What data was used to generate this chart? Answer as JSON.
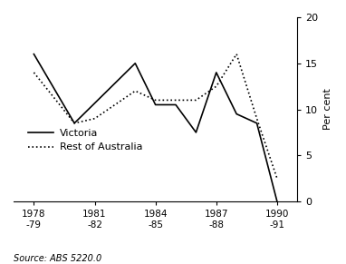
{
  "title": "",
  "ylabel": "Per cent",
  "ylim": [
    0,
    20
  ],
  "yticks": [
    0,
    5,
    10,
    15,
    20
  ],
  "x_labels": [
    "1978\n-79",
    "1981\n-82",
    "1984\n-85",
    "1987\n-88",
    "1990\n-91"
  ],
  "x_positions": [
    1978,
    1981,
    1984,
    1987,
    1990
  ],
  "victoria_x": [
    1978,
    1980,
    1983,
    1984,
    1985,
    1986,
    1987,
    1988,
    1989,
    1990
  ],
  "victoria_y": [
    16.0,
    8.5,
    15.0,
    10.5,
    10.5,
    7.5,
    14.0,
    9.5,
    8.5,
    0.0
  ],
  "roa_x": [
    1978,
    1980,
    1981,
    1983,
    1984,
    1985,
    1986,
    1987,
    1988,
    1989,
    1990
  ],
  "roa_y": [
    14.0,
    8.5,
    9.0,
    12.0,
    11.0,
    11.0,
    11.0,
    12.5,
    16.0,
    9.0,
    2.5
  ],
  "victoria_color": "#000000",
  "roa_color": "#000000",
  "background_color": "#ffffff",
  "source_text": "Source: ABS 5220.0",
  "legend_victoria": "Victoria",
  "legend_roa": "Rest of Australia"
}
